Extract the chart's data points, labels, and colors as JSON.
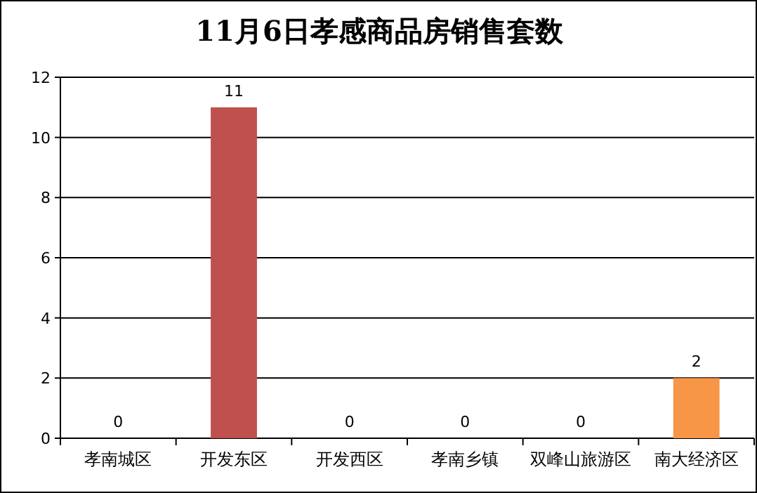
{
  "chart_data": {
    "type": "bar",
    "title": "11月6日孝感商品房销售套数",
    "categories": [
      "孝南城区",
      "开发东区",
      "开发西区",
      "孝南乡镇",
      "双峰山旅游区",
      "南大经济区"
    ],
    "values": [
      0,
      11,
      0,
      0,
      0,
      2
    ],
    "colors": [
      "#4f81bd",
      "#c0504d",
      "#9bbb59",
      "#8064a2",
      "#4bacc6",
      "#f79646"
    ],
    "ylim": [
      0,
      12
    ],
    "yticks": [
      0,
      2,
      4,
      6,
      8,
      10,
      12
    ],
    "grid": "y",
    "data_labels": true
  }
}
